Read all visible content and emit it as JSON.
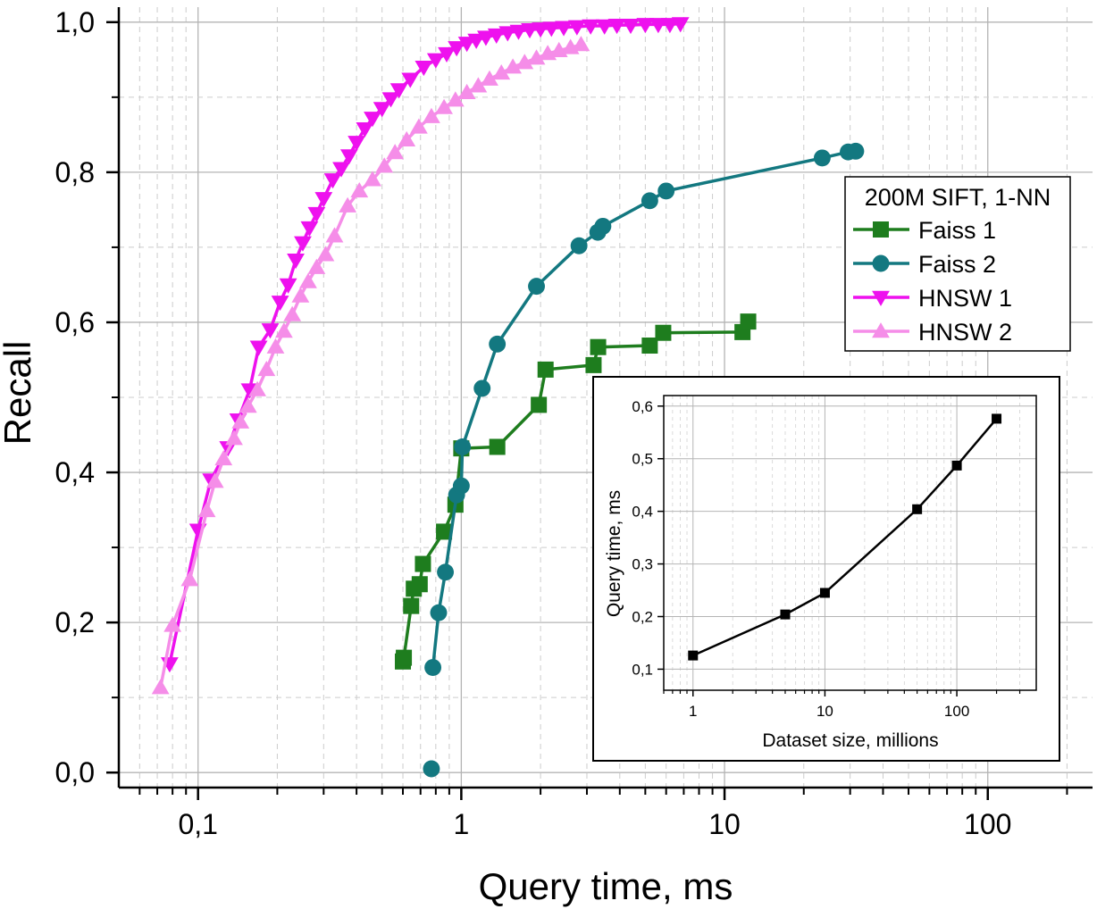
{
  "chart_data": [
    {
      "type": "line",
      "xlabel": "Query time, ms",
      "ylabel": "Recall",
      "xscale": "log",
      "xlim": [
        0.05,
        250
      ],
      "ylim": [
        -0.02,
        1.02
      ],
      "grid": true,
      "legend_title": "200M SIFT, 1-NN",
      "legend_position": "right",
      "x_tick_values": [
        0.1,
        1,
        10,
        100
      ],
      "x_tick_labels": [
        "0,1",
        "1",
        "10",
        "100"
      ],
      "y_tick_values": [
        0.0,
        0.2,
        0.4,
        0.6,
        0.8,
        1.0
      ],
      "y_tick_labels": [
        "0,0",
        "0,2",
        "0,4",
        "0,6",
        "0,8",
        "1,0"
      ],
      "series": [
        {
          "name": "Faiss 1",
          "color": "#1e7d1e",
          "marker": "square",
          "x": [
            0.6,
            0.605,
            0.645,
            0.66,
            0.695,
            0.715,
            0.86,
            0.95,
            1.0,
            1.37,
            1.97,
            2.09,
            3.18,
            3.31,
            5.2,
            5.85,
            11.7,
            12.3
          ],
          "y": [
            0.148,
            0.153,
            0.222,
            0.245,
            0.251,
            0.278,
            0.321,
            0.357,
            0.432,
            0.434,
            0.49,
            0.537,
            0.543,
            0.567,
            0.569,
            0.586,
            0.587,
            0.601
          ]
        },
        {
          "name": "Faiss 2",
          "color": "#137880",
          "marker": "circle",
          "x": [
            0.77,
            0.78,
            0.82,
            0.87,
            0.96,
            1.0,
            1.01,
            1.2,
            1.37,
            1.93,
            2.8,
            3.3,
            3.45,
            5.2,
            6.0,
            23.5,
            29.5,
            31.5
          ],
          "y": [
            0.005,
            0.14,
            0.213,
            0.267,
            0.37,
            0.382,
            0.434,
            0.512,
            0.571,
            0.648,
            0.702,
            0.72,
            0.728,
            0.762,
            0.775,
            0.819,
            0.827,
            0.828
          ],
          "line_from_index": 1
        },
        {
          "name": "HNSW 1",
          "color": "#ee11ee",
          "marker": "triangle-down",
          "x": [
            0.078,
            0.1,
            0.112,
            0.13,
            0.142,
            0.157,
            0.17,
            0.188,
            0.205,
            0.22,
            0.235,
            0.25,
            0.265,
            0.282,
            0.3,
            0.325,
            0.35,
            0.375,
            0.4,
            0.43,
            0.46,
            0.5,
            0.54,
            0.58,
            0.64,
            0.72,
            0.8,
            0.88,
            0.96,
            1.05,
            1.14,
            1.24,
            1.36,
            1.5,
            1.65,
            1.82,
            2.0,
            2.2,
            2.45,
            2.75,
            3.1,
            3.5,
            3.9,
            4.4,
            5.0,
            5.6,
            6.2,
            6.8
          ],
          "y": [
            0.145,
            0.323,
            0.39,
            0.433,
            0.47,
            0.51,
            0.567,
            0.59,
            0.627,
            0.65,
            0.683,
            0.706,
            0.726,
            0.745,
            0.765,
            0.79,
            0.805,
            0.822,
            0.84,
            0.858,
            0.872,
            0.885,
            0.898,
            0.91,
            0.924,
            0.94,
            0.95,
            0.958,
            0.966,
            0.972,
            0.976,
            0.98,
            0.983,
            0.986,
            0.988,
            0.99,
            0.991,
            0.992,
            0.993,
            0.994,
            0.995,
            0.995,
            0.996,
            0.996,
            0.997,
            0.997,
            0.997,
            0.998
          ]
        },
        {
          "name": "HNSW 2",
          "color": "#f58de8",
          "marker": "triangle-up",
          "x": [
            0.072,
            0.08,
            0.093,
            0.108,
            0.116,
            0.125,
            0.137,
            0.145,
            0.155,
            0.168,
            0.182,
            0.197,
            0.212,
            0.228,
            0.245,
            0.262,
            0.282,
            0.305,
            0.33,
            0.37,
            0.41,
            0.46,
            0.51,
            0.56,
            0.62,
            0.69,
            0.77,
            0.86,
            0.95,
            1.05,
            1.16,
            1.28,
            1.42,
            1.57,
            1.74,
            1.93,
            2.13,
            2.35,
            2.6,
            2.85
          ],
          "y": [
            0.113,
            0.196,
            0.257,
            0.349,
            0.388,
            0.418,
            0.445,
            0.467,
            0.488,
            0.51,
            0.537,
            0.567,
            0.588,
            0.61,
            0.635,
            0.654,
            0.673,
            0.69,
            0.715,
            0.755,
            0.775,
            0.79,
            0.808,
            0.826,
            0.843,
            0.86,
            0.874,
            0.886,
            0.896,
            0.906,
            0.915,
            0.924,
            0.932,
            0.94,
            0.946,
            0.952,
            0.958,
            0.962,
            0.966,
            0.97
          ]
        }
      ]
    },
    {
      "type": "line",
      "xlabel": "Dataset size, millions",
      "ylabel": "Query time, ms",
      "xscale": "log",
      "xlim": [
        0.6,
        400
      ],
      "ylim": [
        0.06,
        0.62
      ],
      "grid": true,
      "x_tick_values": [
        1,
        10,
        100
      ],
      "x_tick_labels": [
        "1",
        "10",
        "100"
      ],
      "y_tick_values": [
        0.1,
        0.2,
        0.3,
        0.4,
        0.5,
        0.6
      ],
      "y_tick_labels": [
        "0,1",
        "0,2",
        "0,3",
        "0,4",
        "0,5",
        "0,6"
      ],
      "series": [
        {
          "color": "#000000",
          "marker": "square",
          "x": [
            1,
            5,
            10,
            50,
            100,
            200
          ],
          "y": [
            0.126,
            0.204,
            0.245,
            0.404,
            0.487,
            0.576
          ]
        }
      ]
    }
  ]
}
